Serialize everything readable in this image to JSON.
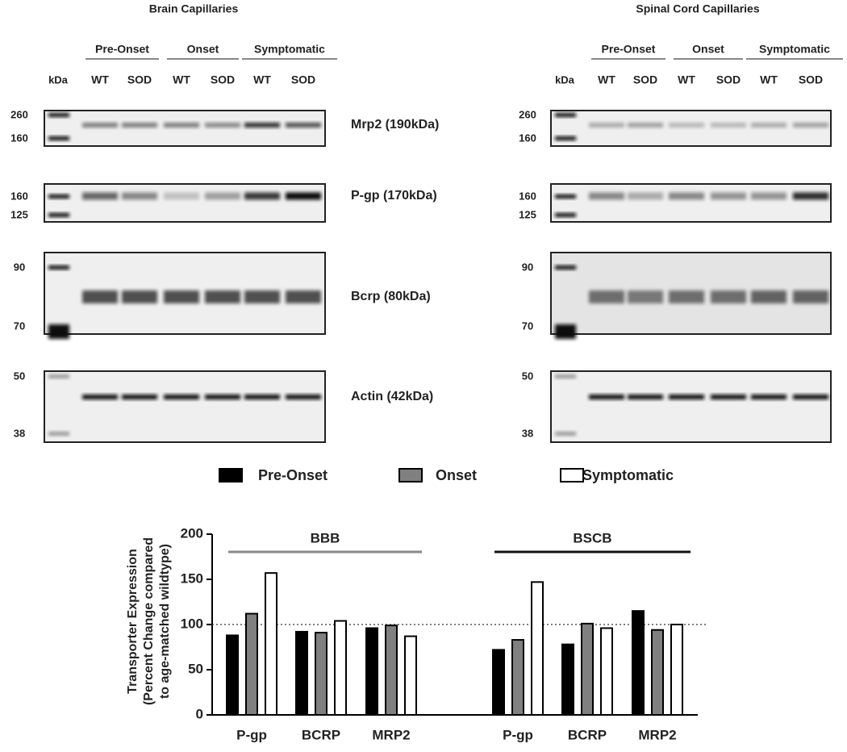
{
  "blots": {
    "panels": [
      {
        "title": "Brain Capillaries",
        "groups": [
          "Pre-Onset",
          "Onset",
          "Symptomatic"
        ],
        "lane_unit": "kDa",
        "lanes": [
          "WT",
          "SOD",
          "WT",
          "SOD",
          "WT",
          "SOD"
        ]
      },
      {
        "title": "Spinal Cord Capillaries",
        "groups": [
          "Pre-Onset",
          "Onset",
          "Symptomatic"
        ],
        "lane_unit": "kDa",
        "lanes": [
          "WT",
          "SOD",
          "WT",
          "SOD",
          "WT",
          "SOD"
        ]
      }
    ],
    "proteins": [
      "Mrp2 (190kDa)",
      "P-gp (170kDa)",
      "Bcrp (80kDa)",
      "Actin (42kDa)"
    ],
    "markers": [
      [
        "260",
        "160"
      ],
      [
        "160",
        "125"
      ],
      [
        "90",
        "70"
      ],
      [
        "50",
        "38"
      ]
    ]
  },
  "chart_data": {
    "type": "bar",
    "y_label": [
      "Transporter Expression",
      "(Percent Change compared",
      "to age-matched wildtype)"
    ],
    "categories": [
      "P-gp",
      "BCRP",
      "MRP2",
      "P-gp",
      "BCRP",
      "MRP2"
    ],
    "groups": [
      "BBB",
      "BSCB"
    ],
    "series": [
      {
        "name": "Pre-Onset",
        "color": "#000000",
        "values": [
          88,
          92,
          96,
          72,
          78,
          115
        ]
      },
      {
        "name": "Onset",
        "color": "#808080",
        "values": [
          112,
          91,
          99,
          83,
          101,
          94
        ]
      },
      {
        "name": "Symptomatic",
        "color": "#ffffff",
        "values": [
          157,
          104,
          87,
          147,
          96,
          100
        ]
      }
    ],
    "reference_line": 100,
    "ylim": [
      0,
      200
    ],
    "yticks": [
      0,
      50,
      100,
      150,
      200
    ]
  }
}
